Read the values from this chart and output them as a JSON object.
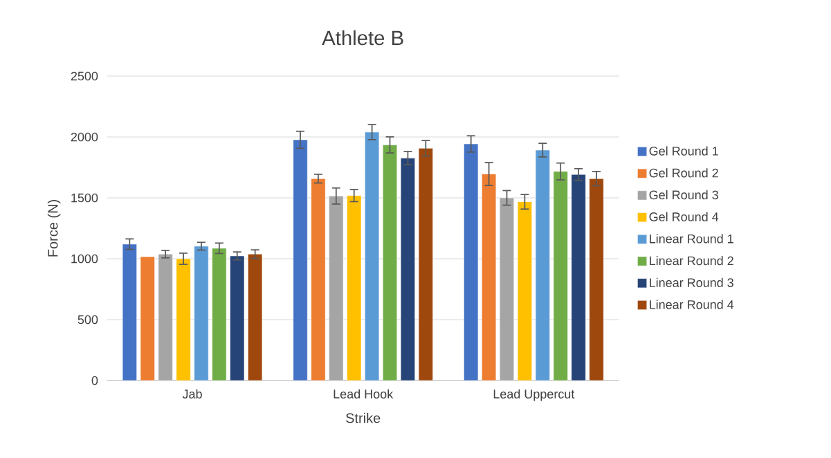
{
  "chart_data": {
    "type": "bar",
    "title": "Athlete B",
    "xlabel": "Strike",
    "ylabel": "Force (N)",
    "categories": [
      "Jab",
      "Lead Hook",
      "Lead Uppercut"
    ],
    "series": [
      {
        "name": "Gel Round 1",
        "color": "#4472c4",
        "values": [
          1120,
          1977,
          1943
        ],
        "errors": [
          43,
          70,
          67
        ]
      },
      {
        "name": "Gel Round 2",
        "color": "#ed7d31",
        "values": [
          1017,
          1658,
          1696
        ],
        "errors": [
          null,
          36,
          94
        ]
      },
      {
        "name": "Gel Round 3",
        "color": "#a5a5a5",
        "values": [
          1038,
          1515,
          1500
        ],
        "errors": [
          31,
          66,
          60
        ]
      },
      {
        "name": "Gel Round 4",
        "color": "#ffc000",
        "values": [
          1000,
          1519,
          1468
        ],
        "errors": [
          46,
          50,
          60
        ]
      },
      {
        "name": "Linear Round 1",
        "color": "#5b9bd5",
        "values": [
          1103,
          2040,
          1892
        ],
        "errors": [
          32,
          62,
          56
        ]
      },
      {
        "name": "Linear Round 2",
        "color": "#70ad47",
        "values": [
          1086,
          1935,
          1717
        ],
        "errors": [
          43,
          66,
          69
        ]
      },
      {
        "name": "Linear Round 3",
        "color": "#264478",
        "values": [
          1023,
          1827,
          1692
        ],
        "errors": [
          33,
          54,
          48
        ]
      },
      {
        "name": "Linear Round 4",
        "color": "#9e480e",
        "values": [
          1038,
          1907,
          1658
        ],
        "errors": [
          35,
          64,
          59
        ]
      }
    ],
    "ylim": [
      0,
      2500
    ],
    "yticks": [
      0,
      500,
      1000,
      1500,
      2000,
      2500
    ],
    "grid": "y",
    "legend": "right"
  }
}
